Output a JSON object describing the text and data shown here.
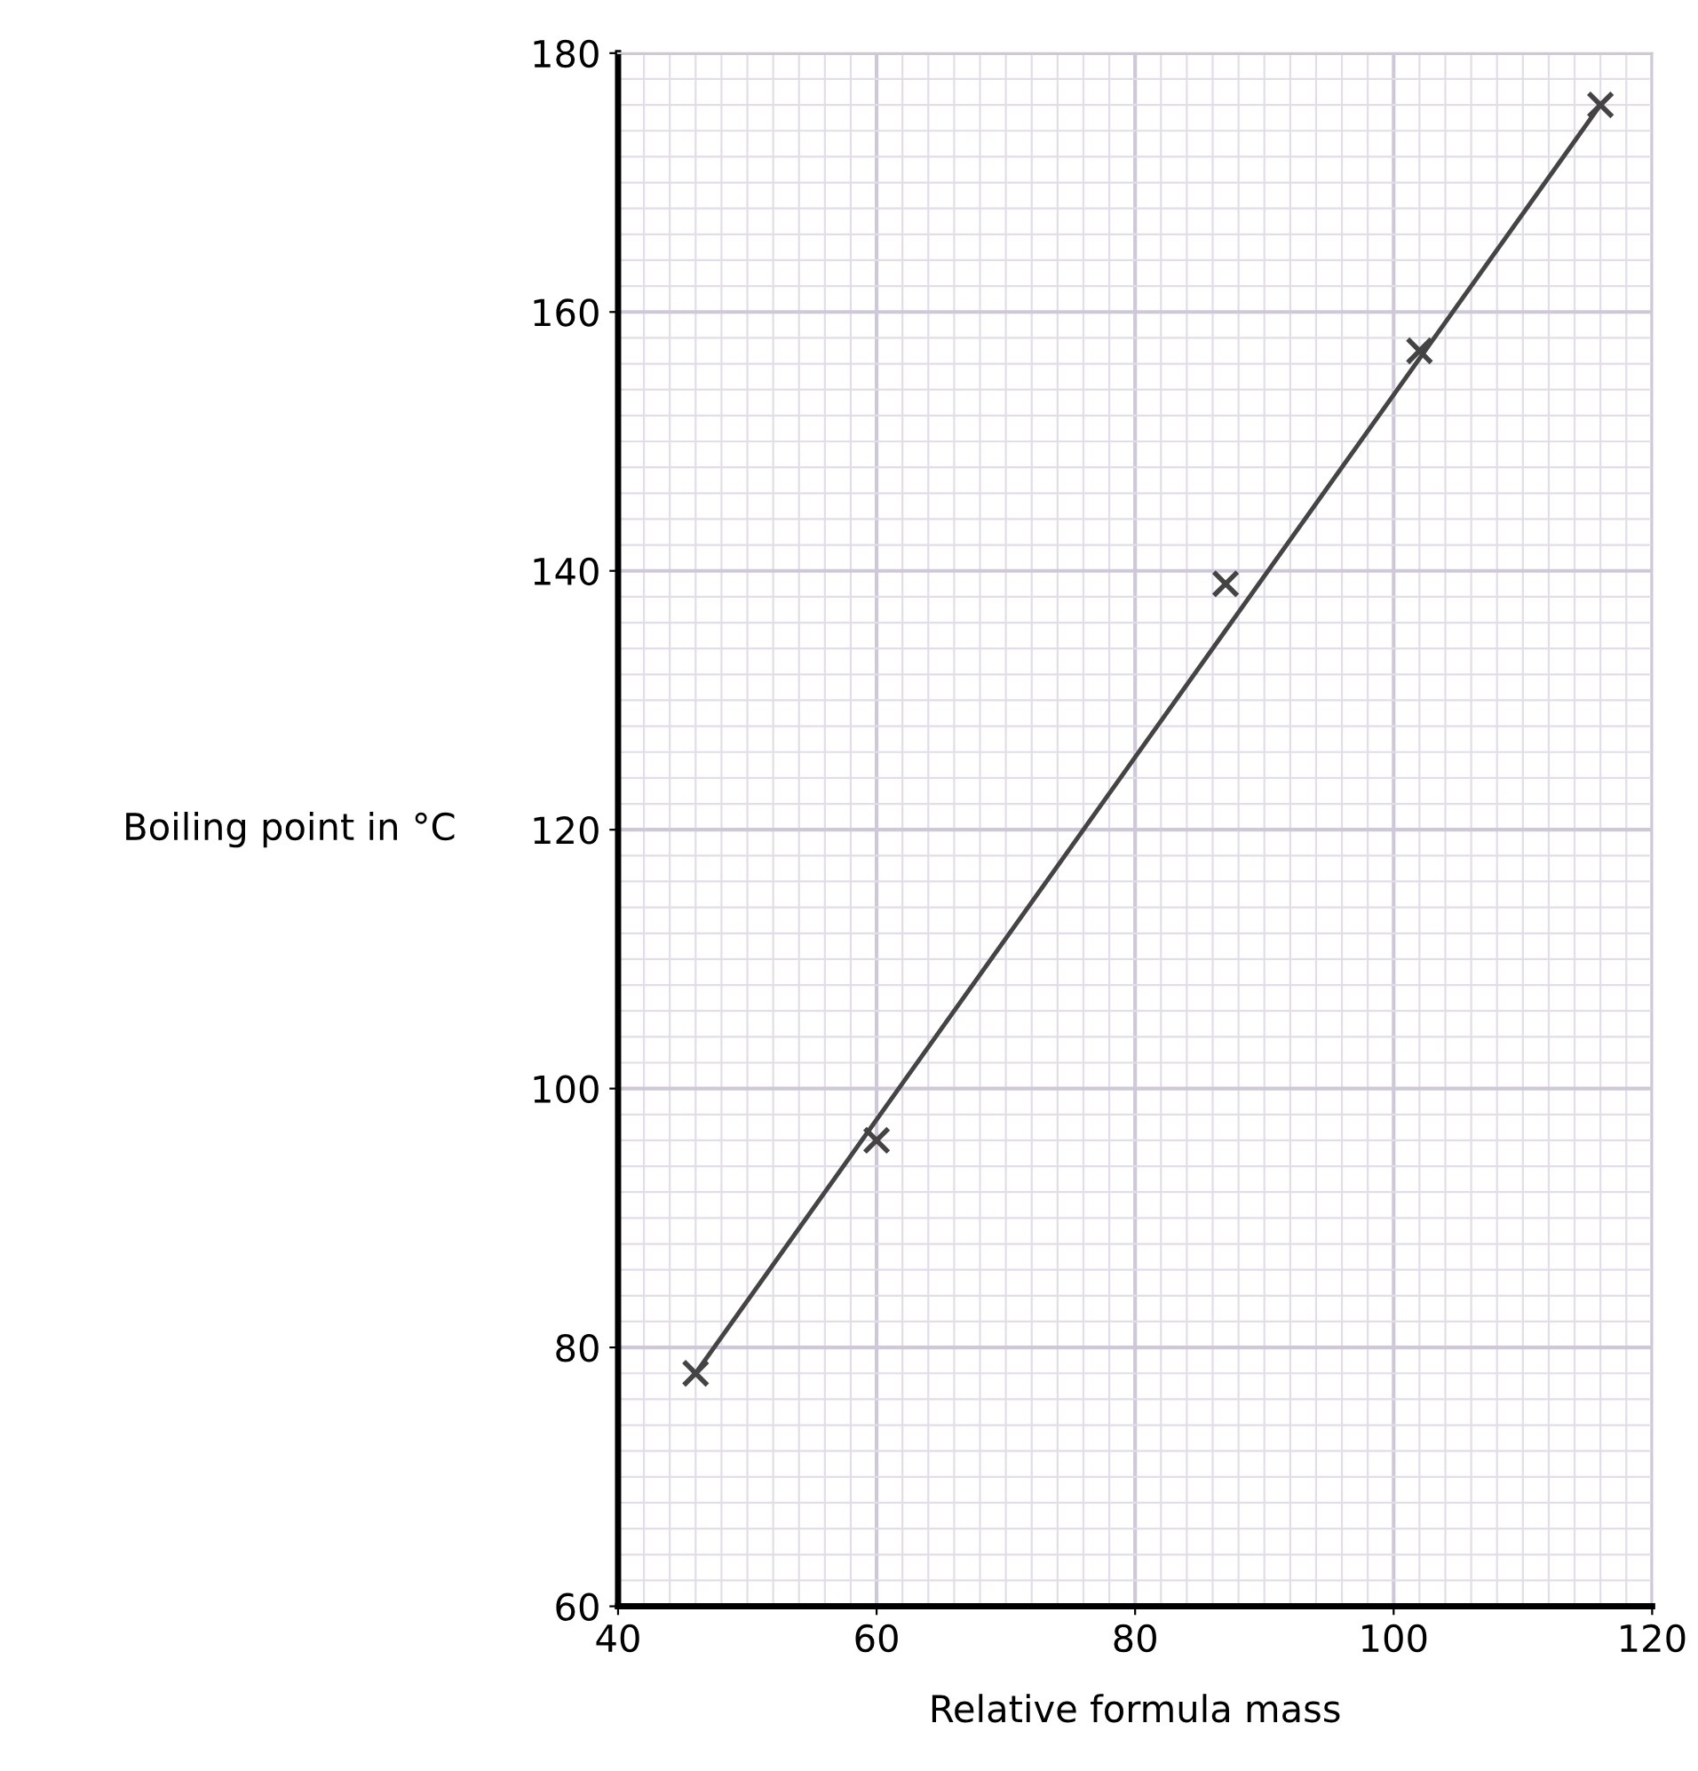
{
  "chart_data": {
    "type": "scatter",
    "xlabel": "Relative formula mass",
    "ylabel": "Boiling point in °C",
    "x": [
      46,
      60,
      87,
      102,
      116
    ],
    "series": [
      {
        "color": "#444444",
        "marker": "cross",
        "values": [
          78,
          96,
          139,
          157,
          176
        ]
      },
      {
        "type": "line",
        "color": "#444444",
        "x": [
          46,
          116
        ],
        "values": [
          78,
          176
        ],
        "line_style": "solid",
        "marker": "none"
      }
    ],
    "xlim": [
      40,
      120
    ],
    "xticks": [
      40,
      60,
      80,
      100,
      120
    ],
    "ylim": [
      60,
      180
    ],
    "yticks": [
      60,
      80,
      100,
      120,
      140,
      160,
      180
    ],
    "grid": true,
    "legend": false
  }
}
